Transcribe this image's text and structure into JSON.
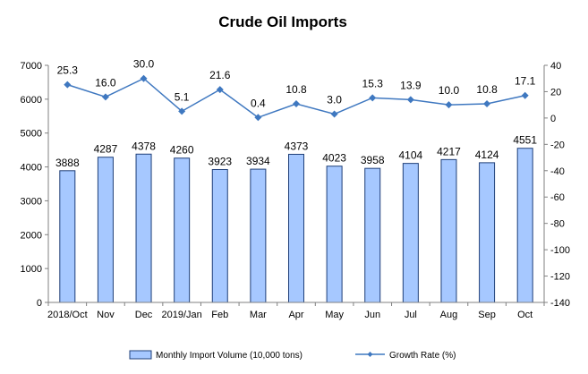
{
  "chart_data": {
    "type": "bar",
    "title": "Crude Oil Imports",
    "categories": [
      "2018/Oct",
      "Nov",
      "Dec",
      "2019/Jan",
      "Feb",
      "Mar",
      "Apr",
      "May",
      "Jun",
      "Jul",
      "Aug",
      "Sep",
      "Oct"
    ],
    "series": [
      {
        "name": "Monthly Import Volume (10,000 tons)",
        "type": "bar",
        "axis": "left",
        "values": [
          3888,
          4287,
          4378,
          4260,
          3923,
          3934,
          4373,
          4023,
          3958,
          4104,
          4217,
          4124,
          4551
        ],
        "labels": [
          "3888",
          "4287",
          "4378",
          "4260",
          "3923",
          "3934",
          "4373",
          "4023",
          "3958",
          "4104",
          "4217",
          "4124",
          "4551"
        ]
      },
      {
        "name": "Growth Rate (%)",
        "type": "line",
        "axis": "right",
        "values": [
          25.3,
          16.0,
          30.0,
          5.1,
          21.6,
          0.4,
          10.8,
          3.0,
          15.3,
          13.9,
          10.0,
          10.8,
          17.1
        ],
        "labels": [
          "25.3",
          "16.0",
          "30.0",
          "5.1",
          "21.6",
          "0.4",
          "10.8",
          "3.0",
          "15.3",
          "13.9",
          "10.0",
          "10.8",
          "17.1"
        ]
      }
    ],
    "y_left": {
      "min": 0,
      "max": 7000,
      "ticks": [
        0,
        1000,
        2000,
        3000,
        4000,
        5000,
        6000,
        7000
      ],
      "tick_labels": [
        "0",
        "1000",
        "2000",
        "3000",
        "4000",
        "5000",
        "6000",
        "7000"
      ]
    },
    "y_right": {
      "min": -140,
      "max": 40,
      "ticks": [
        -140,
        -120,
        -100,
        -80,
        -60,
        -40,
        -20,
        0,
        20,
        40
      ],
      "tick_labels": [
        "-140",
        "-120",
        "-100",
        "-80",
        "-60",
        "-40",
        "-20",
        "0",
        "20",
        "40"
      ]
    },
    "grid": false,
    "legend": "bottom",
    "colors": {
      "bar_fill": "#a6c8ff",
      "bar_stroke": "#1f3f78",
      "line": "#3f78c0",
      "axis": "#808080"
    }
  }
}
